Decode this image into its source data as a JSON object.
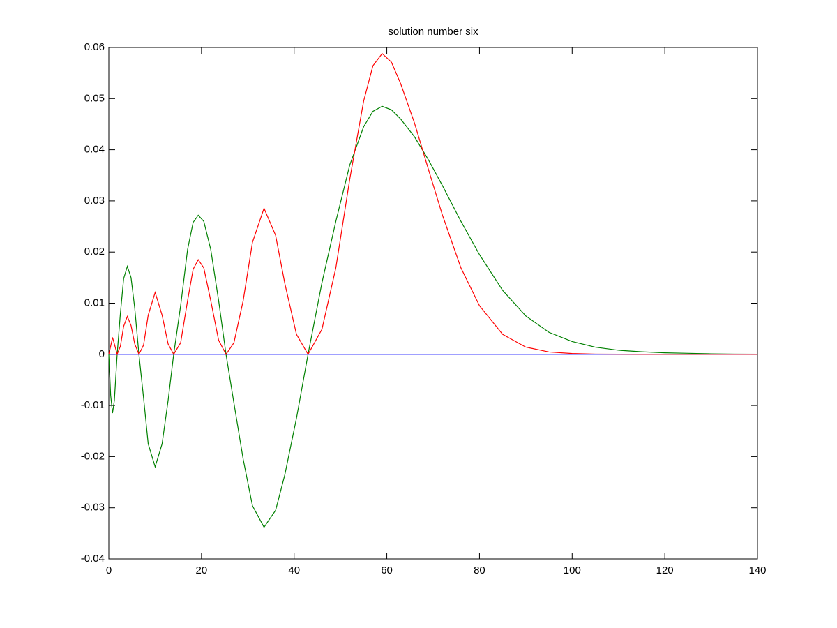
{
  "chart_data": {
    "type": "line",
    "title": "solution number six",
    "x": [
      0,
      0.4,
      0.8,
      1.2,
      1.8,
      2.5,
      3.2,
      4,
      4.8,
      5.6,
      6.5,
      7.5,
      8.5,
      10,
      11.5,
      12.8,
      14,
      15.5,
      17,
      18.2,
      19.3,
      20.5,
      22,
      23.7,
      25.3,
      27,
      29,
      31,
      33.5,
      36,
      38,
      40.5,
      43,
      46,
      49,
      52,
      55,
      57,
      59,
      61,
      63,
      66,
      69,
      72,
      76,
      80,
      85,
      90,
      95,
      100,
      105,
      110,
      115,
      120,
      125,
      130,
      135,
      140
    ],
    "series": [
      {
        "color": "#0000ff",
        "values": [
          0,
          0,
          0,
          0,
          0,
          0,
          0,
          0,
          0,
          0,
          0,
          0,
          0,
          0,
          0,
          0,
          0,
          0,
          0,
          0,
          0,
          0,
          0,
          0,
          0,
          0,
          0,
          0,
          0,
          0,
          0,
          0,
          0,
          0,
          0,
          0,
          0,
          0,
          0,
          0,
          0,
          0,
          0,
          0,
          0,
          0,
          0,
          0,
          0,
          0,
          0,
          0,
          0,
          0,
          0,
          0,
          0,
          0
        ]
      },
      {
        "color": "#008000",
        "values": [
          0,
          -0.008,
          -0.0115,
          -0.009,
          0,
          0.008,
          0.0148,
          0.0172,
          0.015,
          0.009,
          0,
          -0.0085,
          -0.0175,
          -0.022,
          -0.0175,
          -0.009,
          0,
          0.0095,
          0.0205,
          0.0258,
          0.0272,
          0.026,
          0.0205,
          0.0105,
          0,
          -0.0095,
          -0.0205,
          -0.0296,
          -0.0338,
          -0.0305,
          -0.0235,
          -0.0125,
          0,
          0.014,
          0.026,
          0.037,
          0.0445,
          0.0475,
          0.0485,
          0.0478,
          0.046,
          0.0425,
          0.038,
          0.033,
          0.026,
          0.0195,
          0.0125,
          0.0075,
          0.0043,
          0.0025,
          0.0014,
          0.0008,
          0.0005,
          0.0003,
          0.0002,
          0.0001,
          5e-05,
          3e-05
        ]
      },
      {
        "color": "#ff0000",
        "values": [
          0,
          0.0016,
          0.00331,
          0.00203,
          0,
          0.0016,
          0.00548,
          0.0074,
          0.00563,
          0.00203,
          0,
          0.00181,
          0.00766,
          0.0121,
          0.00766,
          0.00203,
          0,
          0.00226,
          0.0105,
          0.01664,
          0.0185,
          0.0169,
          0.0105,
          0.00276,
          0,
          0.00226,
          0.0105,
          0.0219,
          0.02856,
          0.02326,
          0.01381,
          0.00391,
          0,
          0.0049,
          0.0169,
          0.03423,
          0.04951,
          0.05641,
          0.05881,
          0.05712,
          0.0529,
          0.04516,
          0.0361,
          0.02723,
          0.0169,
          0.00951,
          0.00391,
          0.00141,
          0.00046,
          0.00016,
          5e-05,
          2e-05,
          1e-05,
          0,
          0,
          0,
          0,
          0
        ]
      }
    ],
    "xlim": [
      0,
      140
    ],
    "xticks": [
      0,
      20,
      40,
      60,
      80,
      100,
      120,
      140
    ],
    "ylim": [
      -0.04,
      0.06
    ],
    "yticks": [
      -0.04,
      -0.03,
      -0.02,
      -0.01,
      0,
      0.01,
      0.02,
      0.03,
      0.04,
      0.05,
      0.06
    ]
  }
}
